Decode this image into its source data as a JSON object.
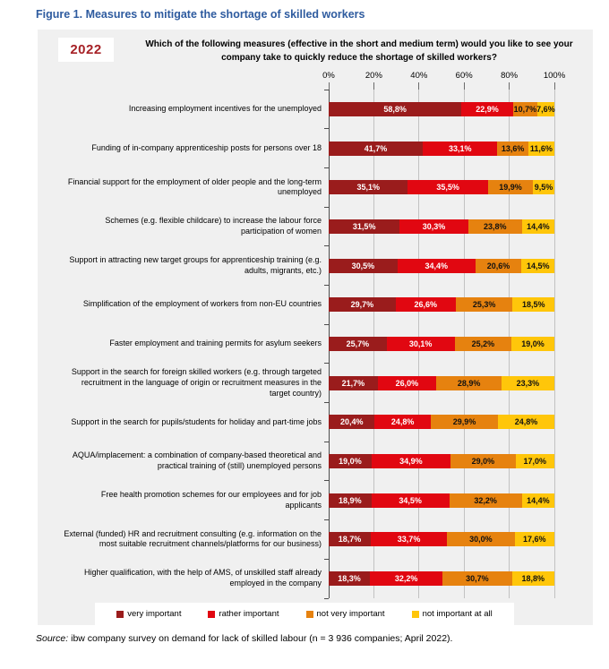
{
  "figure_title": "Figure 1. Measures to mitigate the shortage of skilled workers",
  "year_badge": "2022",
  "question": "Which of the following measures (effective in the short and medium term) would you like to see your company take to quickly reduce the shortage of skilled workers?",
  "source": {
    "prefix": "Source:",
    "text": " ibw company survey on demand for lack of skilled labour (n = 3 936 companies; April 2022)."
  },
  "colors": {
    "very_important": "#9a1c1c",
    "rather_important": "#e10711",
    "not_very_important": "#e6820f",
    "not_important_at_all": "#ffc60a",
    "panel_bg": "#f0f0f0",
    "grid": "#c2c2c2",
    "axis": "#4d4d4d",
    "title_blue": "#2e5b9f",
    "year_red": "#a62126"
  },
  "chart_data": {
    "type": "bar",
    "orientation": "horizontal-stacked",
    "title": "Which of the following measures (effective in the short and medium term) would you like to see your company take to quickly reduce the shortage of skilled workers?",
    "xlabel": "",
    "ylabel": "",
    "xlim": [
      0,
      100
    ],
    "x_ticks": [
      "0%",
      "20%",
      "40%",
      "60%",
      "80%",
      "100%"
    ],
    "grid": true,
    "legend_position": "bottom",
    "legend": [
      "very important",
      "rather important",
      "not very important",
      "not important at all"
    ],
    "categories": [
      "Increasing employment incentives for the unemployed",
      "Funding of in-company apprenticeship posts for persons over 18",
      "Financial support for the employment of older people and the long-term unemployed",
      "Schemes (e.g. flexible childcare) to increase the labour force participation of women",
      "Support in attracting new target groups for apprenticeship training (e.g. adults, migrants, etc.)",
      "Simplification of the employment of workers from non-EU countries",
      "Faster employment and training permits for asylum seekers",
      "Support in the search for foreign skilled workers (e.g. through targeted recruitment in the language of origin or recruitment measures in the target country)",
      "Support in the search for pupils/students for holiday and part-time jobs",
      "AQUA/implacement: a combination of company-based theoretical and practical training of (still) unemployed persons",
      "Free health promotion schemes for our employees and for job applicants",
      "External (funded) HR and recruitment consulting (e.g. information on the most suitable recruitment channels/platforms for our business)",
      "Higher qualification, with the help of AMS, of unskilled staff already employed in the company"
    ],
    "series": [
      {
        "name": "very important",
        "color": "#9a1c1c",
        "label_color": "#ffffff",
        "values": [
          58.8,
          41.7,
          35.1,
          31.5,
          30.5,
          29.7,
          25.7,
          21.7,
          20.4,
          19.0,
          18.9,
          18.7,
          18.3
        ]
      },
      {
        "name": "rather important",
        "color": "#e10711",
        "label_color": "#ffffff",
        "values": [
          22.9,
          33.1,
          35.5,
          30.3,
          34.4,
          26.6,
          30.1,
          26.0,
          24.8,
          34.9,
          34.5,
          33.7,
          32.2
        ]
      },
      {
        "name": "not very important",
        "color": "#e6820f",
        "label_color": "#111111",
        "values": [
          10.7,
          13.6,
          19.9,
          23.8,
          20.6,
          25.3,
          25.2,
          28.9,
          29.9,
          29.0,
          32.2,
          30.0,
          30.7
        ]
      },
      {
        "name": "not important at all",
        "color": "#ffc60a",
        "label_color": "#111111",
        "values": [
          7.6,
          11.6,
          9.5,
          14.4,
          14.5,
          18.5,
          19.0,
          23.3,
          24.8,
          17.0,
          14.4,
          17.6,
          18.8
        ]
      }
    ],
    "value_labels": [
      [
        "58,8%",
        "22,9%",
        "10,7%",
        "7,6%"
      ],
      [
        "41,7%",
        "33,1%",
        "13,6%",
        "11,6%"
      ],
      [
        "35,1%",
        "35,5%",
        "19,9%",
        "9,5%"
      ],
      [
        "31,5%",
        "30,3%",
        "23,8%",
        "14,4%"
      ],
      [
        "30,5%",
        "34,4%",
        "20,6%",
        "14,5%"
      ],
      [
        "29,7%",
        "26,6%",
        "25,3%",
        "18,5%"
      ],
      [
        "25,7%",
        "30,1%",
        "25,2%",
        "19,0%"
      ],
      [
        "21,7%",
        "26,0%",
        "28,9%",
        "23,3%"
      ],
      [
        "20,4%",
        "24,8%",
        "29,9%",
        "24,8%"
      ],
      [
        "19,0%",
        "34,9%",
        "29,0%",
        "17,0%"
      ],
      [
        "18,9%",
        "34,5%",
        "32,2%",
        "14,4%"
      ],
      [
        "18,7%",
        "33,7%",
        "30,0%",
        "17,6%"
      ],
      [
        "18,3%",
        "32,2%",
        "30,7%",
        "18,8%"
      ]
    ]
  }
}
